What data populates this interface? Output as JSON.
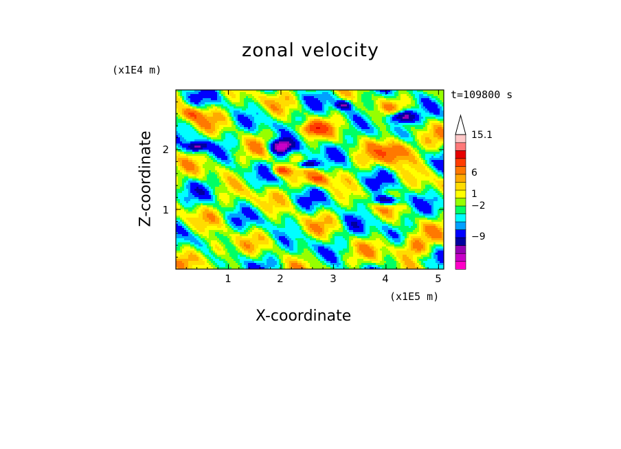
{
  "chart_data": {
    "type": "heatmap",
    "title": "zonal velocity",
    "xlabel": "X-coordinate",
    "ylabel": "Z-coordinate",
    "x_unit": "(x1E5 m)",
    "y_unit": "(x1E4 m)",
    "time_label": "t=109800 s",
    "xlim": [
      0,
      5.1
    ],
    "ylim": [
      0,
      3.0
    ],
    "x_ticks": [
      "1",
      "2",
      "3",
      "4",
      "5"
    ],
    "y_ticks": [
      "1",
      "2"
    ],
    "colorbar_labels": [
      "15.1",
      "6",
      "1",
      "−2",
      "−9"
    ],
    "colorbar_levels": [
      -15,
      -12,
      -9,
      -7,
      -5,
      -3,
      -2,
      -1,
      0,
      1,
      2,
      3,
      4,
      6,
      9,
      12,
      15.1
    ],
    "colorbar_colors": [
      "#ff00c8",
      "#c800c8",
      "#9600b4",
      "#0000a0",
      "#0000ff",
      "#00a0ff",
      "#00ffff",
      "#00ff64",
      "#96ff00",
      "#ffff00",
      "#ffdc00",
      "#ffaa00",
      "#ff7800",
      "#ff3c00",
      "#e60000",
      "#ff7878",
      "#ffc8c8"
    ],
    "grid": false
  }
}
